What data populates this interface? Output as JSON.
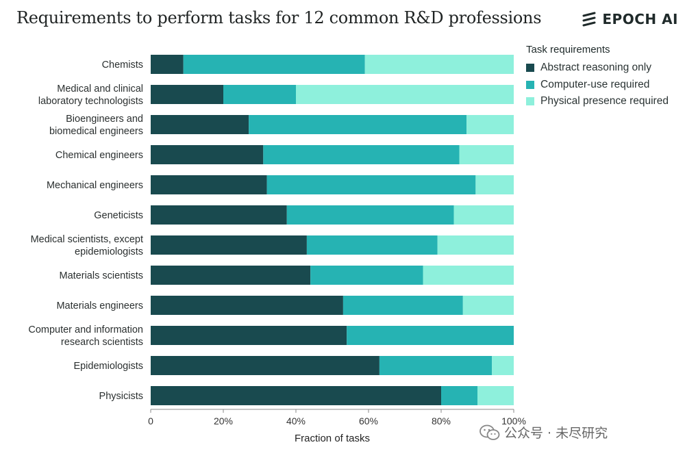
{
  "title": "Requirements to perform tasks for 12 common R&D professions",
  "brand": {
    "name": "EPOCH AI"
  },
  "watermark": {
    "text": "公众号 · 未尽研究"
  },
  "legend": {
    "title": "Task requirements",
    "items": [
      {
        "label": "Abstract reasoning only",
        "color": "#194a4f"
      },
      {
        "label": "Computer-use required",
        "color": "#26b3b3"
      },
      {
        "label": "Physical presence required",
        "color": "#8ef0dc"
      }
    ]
  },
  "chart_data": {
    "type": "bar",
    "orientation": "horizontal",
    "stacked": true,
    "title": "Requirements to perform tasks for 12 common R&D professions",
    "xlabel": "Fraction of tasks",
    "ylabel": "",
    "xlim": [
      0,
      100
    ],
    "xticks": [
      "0",
      "20%",
      "40%",
      "60%",
      "80%",
      "100%"
    ],
    "grid": false,
    "legend_position": "top-right",
    "categories": [
      [
        "Chemists"
      ],
      [
        "Medical and clinical",
        "laboratory technologists"
      ],
      [
        "Bioengineers and",
        "biomedical engineers"
      ],
      [
        "Chemical engineers"
      ],
      [
        "Mechanical engineers"
      ],
      [
        "Geneticists"
      ],
      [
        "Medical scientists, except",
        "epidemiologists"
      ],
      [
        "Materials scientists"
      ],
      [
        "Materials engineers"
      ],
      [
        "Computer and information",
        "research scientists"
      ],
      [
        "Epidemiologists"
      ],
      [
        "Physicists"
      ]
    ],
    "series": [
      {
        "name": "Abstract reasoning only",
        "color": "#194a4f",
        "values": [
          9,
          20,
          27,
          31,
          32,
          37.5,
          43,
          44,
          53,
          54,
          63,
          80
        ]
      },
      {
        "name": "Computer-use required",
        "color": "#26b3b3",
        "values": [
          50,
          20,
          60,
          54,
          57.5,
          46,
          36,
          31,
          33,
          46,
          31,
          10
        ]
      },
      {
        "name": "Physical presence required",
        "color": "#8ef0dc",
        "values": [
          41,
          60,
          13,
          15,
          10.5,
          16.5,
          21,
          25,
          14,
          0,
          6,
          10
        ]
      }
    ]
  }
}
